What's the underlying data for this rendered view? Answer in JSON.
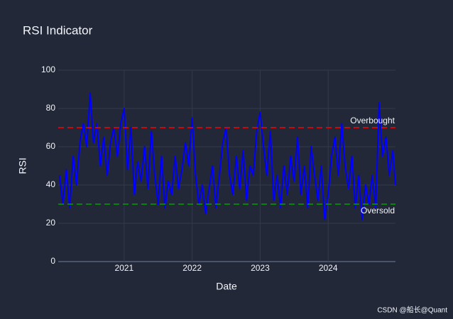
{
  "chart_data": {
    "type": "line",
    "title": "RSI Indicator",
    "x_label": "Date",
    "y_label": "RSI",
    "x": [
      2020.05,
      2020.1,
      2020.15,
      2020.2,
      2020.25,
      2020.3,
      2020.35,
      2020.4,
      2020.45,
      2020.5,
      2020.55,
      2020.6,
      2020.65,
      2020.7,
      2020.75,
      2020.8,
      2020.85,
      2020.9,
      2020.95,
      2021.0,
      2021.05,
      2021.1,
      2021.15,
      2021.2,
      2021.25,
      2021.3,
      2021.35,
      2021.4,
      2021.45,
      2021.5,
      2021.55,
      2021.6,
      2021.65,
      2021.7,
      2021.75,
      2021.8,
      2021.85,
      2021.9,
      2021.95,
      2022.0,
      2022.05,
      2022.1,
      2022.15,
      2022.2,
      2022.25,
      2022.3,
      2022.35,
      2022.4,
      2022.45,
      2022.5,
      2022.55,
      2022.6,
      2022.65,
      2022.7,
      2022.75,
      2022.8,
      2022.85,
      2022.9,
      2022.95,
      2023.0,
      2023.05,
      2023.1,
      2023.15,
      2023.2,
      2023.25,
      2023.3,
      2023.35,
      2023.4,
      2023.45,
      2023.5,
      2023.55,
      2023.6,
      2023.65,
      2023.7,
      2023.75,
      2023.8,
      2023.85,
      2023.9,
      2023.95,
      2024.0,
      2024.05,
      2024.1,
      2024.15,
      2024.2,
      2024.25,
      2024.3,
      2024.35,
      2024.4,
      2024.45,
      2024.5,
      2024.55,
      2024.6,
      2024.65,
      2024.7,
      2024.75,
      2024.8,
      2024.85,
      2024.9,
      2024.95,
      2024.99
    ],
    "values": [
      45,
      30,
      48,
      28,
      55,
      40,
      62,
      72,
      60,
      88,
      62,
      72,
      50,
      65,
      45,
      62,
      70,
      55,
      72,
      80,
      48,
      70,
      35,
      52,
      42,
      60,
      38,
      68,
      45,
      30,
      55,
      28,
      42,
      35,
      55,
      38,
      48,
      62,
      50,
      75,
      45,
      30,
      40,
      25,
      38,
      50,
      28,
      45,
      62,
      70,
      45,
      35,
      55,
      38,
      58,
      32,
      50,
      45,
      68,
      78,
      60,
      45,
      68,
      32,
      45,
      28,
      50,
      35,
      55,
      42,
      65,
      35,
      50,
      28,
      60,
      45,
      32,
      50,
      22,
      35,
      55,
      65,
      45,
      72,
      50,
      38,
      55,
      28,
      45,
      22,
      40,
      30,
      45,
      28,
      83,
      55,
      65,
      45,
      58,
      40
    ],
    "color": "#0000ff",
    "xlim": [
      2020.03,
      2024.99
    ],
    "xticks": [
      2021,
      2022,
      2023,
      2024
    ],
    "ylim": [
      0,
      100
    ],
    "yticks": [
      0,
      20,
      40,
      60,
      80,
      100
    ],
    "grid": true,
    "reference_lines": [
      {
        "value": 70,
        "label": "Overbought",
        "color": "#ff0000"
      },
      {
        "value": 30,
        "label": "Oversold",
        "color": "#00a000"
      }
    ]
  },
  "watermark": "CSDN @船长@Quant"
}
